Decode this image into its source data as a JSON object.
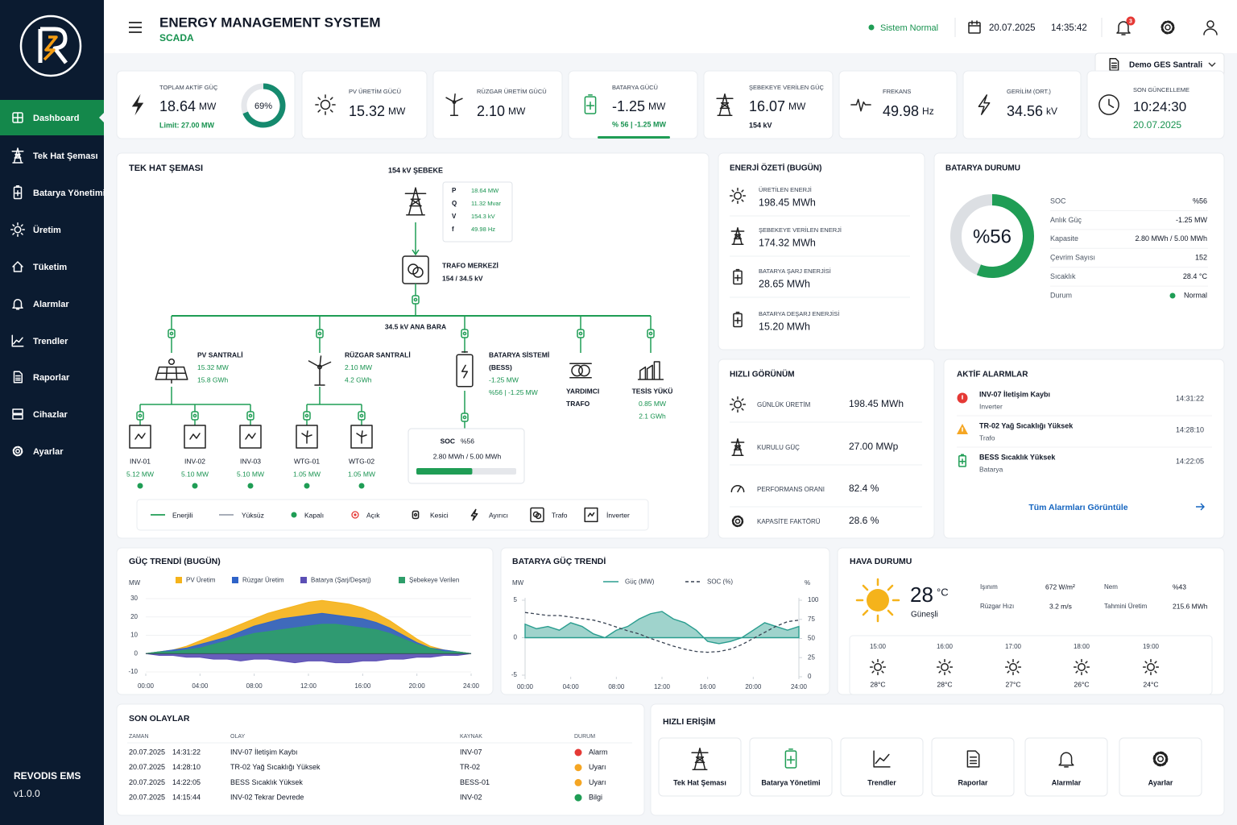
{
  "sidebar": {
    "nav": [
      "Dashboard",
      "Tek Hat Şeması",
      "Batarya Yönetimi",
      "Üretim",
      "Tüketim",
      "Alarmlar",
      "Trendler",
      "Raporlar",
      "Cihazlar",
      "Ayarlar"
    ],
    "brand": "REVODIS EMS",
    "version": "v1.0.0"
  },
  "header": {
    "title": "ENERGY MANAGEMENT SYSTEM",
    "subtitle": "SCADA",
    "status": "Sistem Normal",
    "date": "20.07.2025",
    "time": "14:35:42",
    "notifications": "3",
    "site": "Demo GES Santrali"
  },
  "kpis": [
    {
      "label": "TOPLAM AKTİF GÜÇ",
      "value": "18.64",
      "unit": "MW",
      "note": "Limit: 27.00 MW",
      "percent": 69,
      "percent_label": "69%"
    },
    {
      "label": "PV ÜRETİM GÜCÜ",
      "value": "15.32",
      "unit": "MW"
    },
    {
      "label": "RÜZGAR ÜRETİM GÜCÜ",
      "value": "2.10",
      "unit": "MW"
    },
    {
      "label": "BATARYA GÜCÜ",
      "value": "-1.25",
      "unit": "MW",
      "note": "% 56 | -1.25 MW"
    },
    {
      "label": "ŞEBEKEYE VERİLEN GÜÇ",
      "value": "16.07",
      "unit": "MW",
      "note": "154 kV"
    },
    {
      "label": "FREKANS",
      "value": "49.98",
      "unit": "Hz"
    },
    {
      "label": "GERİLİM (ORT.)",
      "value": "34.56",
      "unit": "kV"
    },
    {
      "label": "SON GÜNCELLEME",
      "value": "10:24:30",
      "note": "20.07.2025"
    }
  ],
  "sld": {
    "title": "TEK HAT ŞEMASI",
    "grid_label": "154 kV ŞEBEKE",
    "measurements": [
      {
        "label": "P",
        "value": "18.64 MW"
      },
      {
        "label": "Q",
        "value": "11.32 Mvar"
      },
      {
        "label": "V",
        "value": "154.3 kV"
      },
      {
        "label": "f",
        "value": "49.98 Hz"
      }
    ],
    "transformer": [
      "TRAFO MERKEZİ",
      "154 / 34.5 kV"
    ],
    "busbar": "34.5 kV ANA BARA",
    "feeders": [
      {
        "title": [
          "PV SANTRALİ"
        ],
        "values": [
          "15.32 MW",
          "15.8 GWh"
        ]
      },
      {
        "title": [
          "RÜZGAR SANTRALİ"
        ],
        "values": [
          "2.10 MW",
          "4.2 GWh"
        ]
      },
      {
        "title": [
          "BATARYA SİSTEMİ",
          "(BESS)"
        ],
        "values": [
          "-1.25 MW",
          "%56 | -1.25 MW"
        ]
      },
      {
        "title": [
          "YARDIMCI",
          "TRAFO"
        ],
        "values": []
      },
      {
        "title": [
          "TESİS YÜKÜ"
        ],
        "values": [
          "0.85 MW",
          "2.1 GWh"
        ]
      }
    ],
    "units": [
      {
        "name": "INV-01",
        "value": "5.12 MW"
      },
      {
        "name": "INV-02",
        "value": "5.10 MW"
      },
      {
        "name": "INV-03",
        "value": "5.10 MW"
      },
      {
        "name": "WTG-01",
        "value": "1.05 MW"
      },
      {
        "name": "WTG-02",
        "value": "1.05 MW"
      }
    ],
    "soc": {
      "label": "SOC",
      "value": 56,
      "value_label": "%56",
      "energy": "2.80 MWh / 5.00 MWh"
    },
    "legend": [
      "Enerjili",
      "Yüksüz",
      "Kapalı",
      "Açık",
      "Kesici",
      "Ayırıcı",
      "Trafo",
      "İnverter"
    ]
  },
  "energy_summary": {
    "title": "ENERJİ ÖZETİ (BUGÜN)",
    "items": [
      {
        "label": "ÜRETİLEN ENERJİ",
        "value": "198.45 MWh"
      },
      {
        "label": "ŞEBEKEYE VERİLEN ENERJİ",
        "value": "174.32 MWh"
      },
      {
        "label": "BATARYA ŞARJ ENERJİSİ",
        "value": "28.65 MWh"
      },
      {
        "label": "BATARYA DEŞARJ ENERJİSİ",
        "value": "15.20 MWh"
      }
    ]
  },
  "battery_status": {
    "title": "BATARYA DURUMU",
    "soc": 56,
    "soc_label": "%56",
    "rows": [
      {
        "label": "SOC",
        "value": "%56"
      },
      {
        "label": "Anlık Güç",
        "value": "-1.25 MW"
      },
      {
        "label": "Kapasite",
        "value": "2.80 MWh / 5.00 MWh"
      },
      {
        "label": "Çevrim Sayısı",
        "value": "152"
      },
      {
        "label": "Sıcaklık",
        "value": "28.4 °C"
      },
      {
        "label": "Durum",
        "value": "Normal"
      }
    ]
  },
  "quick_view": {
    "title": "HIZLI GÖRÜNÜM",
    "items": [
      {
        "label": "GÜNLÜK ÜRETİM",
        "value": "198.45 MWh"
      },
      {
        "label": "KURULU GÜÇ",
        "value": "27.00 MWp"
      },
      {
        "label": "PERFORMANS ORANI",
        "value": "82.4 %"
      },
      {
        "label": "KAPASİTE FAKTÖRÜ",
        "value": "28.6 %"
      }
    ]
  },
  "active_alarms": {
    "title": "AKTİF ALARMLAR",
    "link": "Tüm Alarmları Görüntüle",
    "items": [
      {
        "title": "INV-07 İletişim Kaybı",
        "source": "Inverter",
        "time": "14:31:22",
        "color": "#e53935"
      },
      {
        "title": "TR-02 Yağ Sıcaklığı Yüksek",
        "source": "Trafo",
        "time": "14:28:10",
        "color": "#f5a623"
      },
      {
        "title": "BESS Sıcaklık Yüksek",
        "source": "Batarya",
        "time": "14:22:05",
        "color": "#1f9d55"
      }
    ]
  },
  "power_trend": {
    "title": "GÜÇ TRENDİ (BUGÜN)",
    "y_label": "MW",
    "x": [
      0,
      1,
      2,
      3,
      4,
      5,
      6,
      7,
      8,
      9,
      10,
      11,
      12,
      13,
      14,
      15,
      16,
      17,
      18,
      19,
      20,
      21,
      22,
      23,
      24
    ],
    "xlim": [
      0,
      24
    ],
    "xticks": [
      {
        "value": 0,
        "label": "00:00"
      },
      {
        "value": 4,
        "label": "04:00"
      },
      {
        "value": 8,
        "label": "08:00"
      },
      {
        "value": 12,
        "label": "12:00"
      },
      {
        "value": 16,
        "label": "16:00"
      },
      {
        "value": 20,
        "label": "20:00"
      },
      {
        "value": 24,
        "label": "24:00"
      }
    ],
    "ylim": [
      -10,
      30
    ],
    "yticks": [
      -10,
      0,
      10,
      20,
      30
    ],
    "series": [
      {
        "name": "PV Üretim",
        "color": "#f5b31b",
        "values": [
          0,
          1,
          2,
          4,
          7,
          10,
          13,
          16,
          19,
          22,
          24,
          26,
          28,
          29,
          28,
          27,
          25,
          22,
          18,
          13,
          8,
          4,
          2,
          1,
          0
        ]
      },
      {
        "name": "Rüzgar Üretim",
        "color": "#2f63c8",
        "values": [
          0,
          1,
          2,
          3,
          5,
          7,
          9,
          12,
          15,
          17,
          19,
          20,
          21,
          22,
          21,
          20,
          19,
          17,
          14,
          10,
          6,
          3,
          2,
          1,
          0
        ]
      },
      {
        "name": "Batarya (Şarj/Deşarj)",
        "color": "#5b4fb5",
        "values": [
          0,
          -1,
          -1,
          -2,
          -2,
          -3,
          -3,
          -4,
          -3,
          -3,
          -4,
          -5,
          -4,
          -4,
          -5,
          -5,
          -4,
          -4,
          -3,
          -3,
          -2,
          -2,
          -1,
          -1,
          0
        ]
      },
      {
        "name": "Şebekeye Verilen",
        "color": "#2e9e6a",
        "values": [
          0,
          1,
          1,
          2,
          3,
          5,
          7,
          9,
          11,
          12,
          13,
          14,
          15,
          16,
          16,
          15,
          14,
          13,
          11,
          8,
          5,
          3,
          1,
          1,
          0
        ]
      }
    ]
  },
  "battery_trend": {
    "title": "BATARYA GÜÇ TRENDİ",
    "y_label": "MW",
    "y2_label": "%",
    "x": [
      0,
      1,
      2,
      3,
      4,
      5,
      6,
      7,
      8,
      9,
      10,
      11,
      12,
      13,
      14,
      15,
      16,
      17,
      18,
      19,
      20,
      21,
      22,
      23,
      24
    ],
    "xlim": [
      0,
      24
    ],
    "xticks": [
      {
        "value": 0,
        "label": "00:00"
      },
      {
        "value": 4,
        "label": "04:00"
      },
      {
        "value": 8,
        "label": "08:00"
      },
      {
        "value": 12,
        "label": "12:00"
      },
      {
        "value": 16,
        "label": "16:00"
      },
      {
        "value": 20,
        "label": "20:00"
      },
      {
        "value": 24,
        "label": "24:00"
      }
    ],
    "ylim": [
      -5,
      5
    ],
    "yticks": [
      -5,
      0,
      5
    ],
    "y2lim": [
      0,
      100
    ],
    "y2ticks": [
      0,
      25,
      50,
      75,
      100
    ],
    "series": [
      {
        "name": "Güç (MW)",
        "color": "#2a9d8f",
        "values": [
          1.8,
          1.2,
          1.5,
          1.0,
          2.0,
          1.5,
          0.5,
          0.0,
          1.0,
          1.5,
          2.5,
          3.2,
          3.5,
          2.5,
          2.0,
          1.0,
          -0.5,
          -0.8,
          -0.5,
          0.0,
          1.0,
          2.0,
          1.5,
          1.0,
          1.5
        ]
      },
      {
        "name": "SOC (%)",
        "color": "#374151",
        "axis": "y2",
        "values": [
          84,
          82,
          80,
          80,
          78,
          76,
          74,
          70,
          65,
          60,
          56,
          50,
          45,
          40,
          36,
          33,
          32,
          33,
          36,
          42,
          50,
          58,
          66,
          72,
          74
        ]
      }
    ]
  },
  "weather": {
    "title": "HAVA DURUMU",
    "temperature": "28",
    "unit": "°C",
    "condition": "Güneşli",
    "details": [
      {
        "label": "Işınım",
        "value": "672 W/m²"
      },
      {
        "label": "Nem",
        "value": "%43"
      },
      {
        "label": "Rüzgar Hızı",
        "value": "3.2 m/s"
      },
      {
        "label": "Tahmini Üretim",
        "value": "215.6 MWh"
      }
    ],
    "forecast": [
      {
        "time": "15:00",
        "temp": "28°C"
      },
      {
        "time": "16:00",
        "temp": "28°C"
      },
      {
        "time": "17:00",
        "temp": "27°C"
      },
      {
        "time": "18:00",
        "temp": "26°C"
      },
      {
        "time": "19:00",
        "temp": "24°C"
      }
    ]
  },
  "events": {
    "title": "SON OLAYLAR",
    "columns": [
      "ZAMAN",
      "OLAY",
      "KAYNAK",
      "DURUM"
    ],
    "rows": [
      {
        "date": "20.07.2025",
        "time": "14:31:22",
        "event": "INV-07 İletişim Kaybı",
        "source": "INV-07",
        "status": "Alarm",
        "color": "#e53935"
      },
      {
        "date": "20.07.2025",
        "time": "14:28:10",
        "event": "TR-02 Yağ Sıcaklığı Yüksek",
        "source": "TR-02",
        "status": "Uyarı",
        "color": "#f5a623"
      },
      {
        "date": "20.07.2025",
        "time": "14:22:05",
        "event": "BESS Sıcaklık Yüksek",
        "source": "BESS-01",
        "status": "Uyarı",
        "color": "#f5a623"
      },
      {
        "date": "20.07.2025",
        "time": "14:15:44",
        "event": "INV-02 Tekrar Devrede",
        "source": "INV-02",
        "status": "Bilgi",
        "color": "#1f9d55"
      }
    ]
  },
  "quick_access": {
    "title": "HIZLI ERİŞİM",
    "items": [
      "Tek Hat Şeması",
      "Batarya Yönetimi",
      "Trendler",
      "Raporlar",
      "Alarmlar",
      "Ayarlar"
    ]
  }
}
